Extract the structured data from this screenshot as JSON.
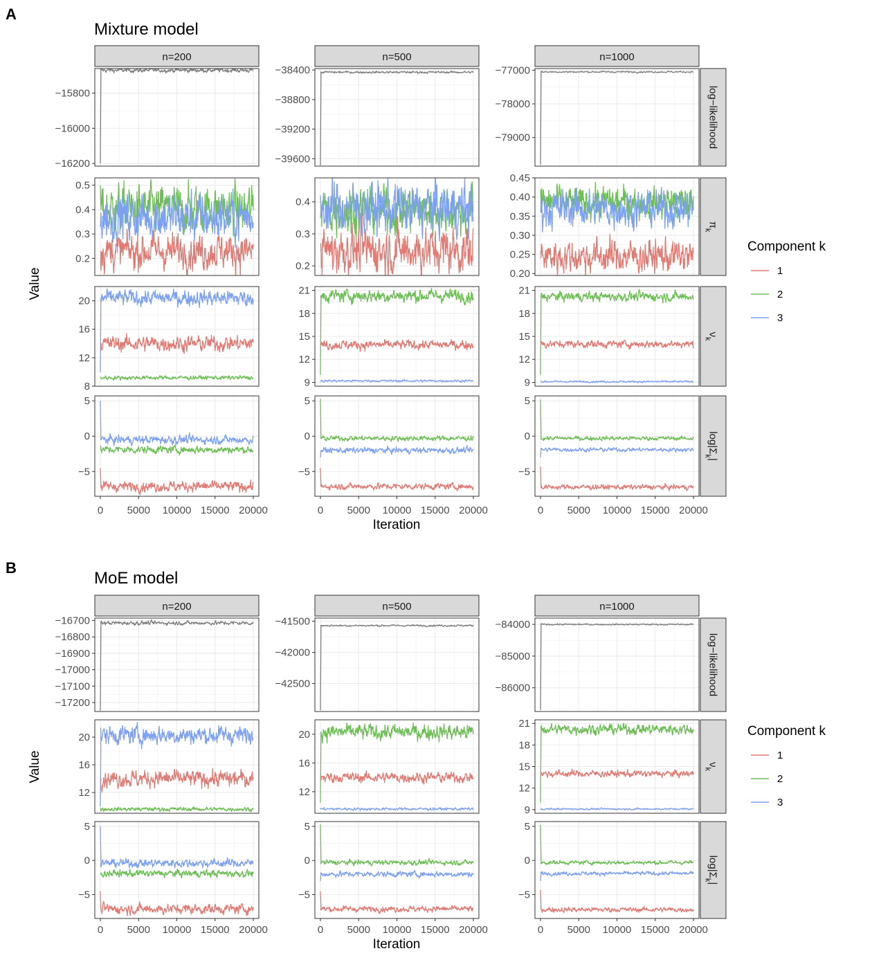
{
  "colors": {
    "1": "#E07A72",
    "2": "#6DBE55",
    "3": "#7CA0F2",
    "ll": "#7F7F7F"
  },
  "legend": {
    "title": "Component k",
    "entries": [
      "1",
      "2",
      "3"
    ]
  },
  "chart_data": [
    {
      "panel_label": "A",
      "title": "Mixture model",
      "type": "line",
      "xlabel": "Iteration",
      "ylabel": "Value",
      "xlim": [
        0,
        20000
      ],
      "xticks": [
        "0",
        "5000",
        "10000",
        "15000",
        "20000"
      ],
      "columns": [
        "n=200",
        "n=500",
        "n=1000"
      ],
      "rows": [
        {
          "key": "loglik",
          "strip": "log−likelihood",
          "cells": [
            {
              "ylim": [
                -16215,
                -15660
              ],
              "ticks": [
                -16200,
                -16000,
                -15800
              ],
              "tick_labels": [
                "−16200",
                "−16000",
                "−15800"
              ],
              "series": [
                {
                  "k": "ll",
                  "start": -16200,
                  "level": -15670,
                  "noise": 5
                }
              ]
            },
            {
              "ylim": [
                -39700,
                -38380
              ],
              "ticks": [
                -39600,
                -39200,
                -38800,
                -38400
              ],
              "tick_labels": [
                "−39600",
                "−39200",
                "−38800",
                "−38400"
              ],
              "series": [
                {
                  "k": "ll",
                  "start": -39690,
                  "level": -38430,
                  "noise": 6
                }
              ]
            },
            {
              "ylim": [
                -79850,
                -76950
              ],
              "ticks": [
                -79000,
                -78000,
                -77000
              ],
              "tick_labels": [
                "−79000",
                "−78000",
                "−77000"
              ],
              "series": [
                {
                  "k": "ll",
                  "start": -79800,
                  "level": -77050,
                  "noise": 10
                }
              ]
            }
          ]
        },
        {
          "key": "pi",
          "strip": "π_k",
          "cells": [
            {
              "ylim": [
                0.13,
                0.53
              ],
              "ticks": [
                0.2,
                0.3,
                0.4,
                0.5
              ],
              "tick_labels": [
                "0.2",
                "0.3",
                "0.4",
                "0.5"
              ],
              "series": [
                {
                  "k": "2",
                  "start": 0.5,
                  "level": 0.4,
                  "noise": 0.04
                },
                {
                  "k": "3",
                  "start": 0.33,
                  "level": 0.37,
                  "noise": 0.042
                },
                {
                  "k": "1",
                  "start": 0.23,
                  "level": 0.23,
                  "noise": 0.03
                }
              ]
            },
            {
              "ylim": [
                0.17,
                0.475
              ],
              "ticks": [
                0.2,
                0.3,
                0.4
              ],
              "tick_labels": [
                "0.2",
                "0.3",
                "0.4"
              ],
              "series": [
                {
                  "k": "2",
                  "start": 0.35,
                  "level": 0.375,
                  "noise": 0.03
                },
                {
                  "k": "3",
                  "start": 0.42,
                  "level": 0.38,
                  "noise": 0.035
                },
                {
                  "k": "1",
                  "start": 0.25,
                  "level": 0.25,
                  "noise": 0.03
                }
              ]
            },
            {
              "ylim": [
                0.195,
                0.45
              ],
              "ticks": [
                0.2,
                0.25,
                0.3,
                0.35,
                0.4,
                0.45
              ],
              "tick_labels": [
                "0.20",
                "0.25",
                "0.30",
                "0.35",
                "0.40",
                "0.45"
              ],
              "series": [
                {
                  "k": "2",
                  "start": 0.42,
                  "level": 0.385,
                  "noise": 0.018
                },
                {
                  "k": "3",
                  "start": 0.36,
                  "level": 0.37,
                  "noise": 0.02
                },
                {
                  "k": "1",
                  "start": 0.24,
                  "level": 0.245,
                  "noise": 0.018
                }
              ]
            }
          ]
        },
        {
          "key": "nu",
          "strip": "ν_k",
          "cells": [
            {
              "ylim": [
                8,
                22
              ],
              "ticks": [
                8,
                12,
                16,
                20
              ],
              "tick_labels": [
                "8",
                "12",
                "16",
                "20"
              ],
              "series": [
                {
                  "k": "3",
                  "start": 10,
                  "level": 20.4,
                  "noise": 0.45
                },
                {
                  "k": "1",
                  "start": 14,
                  "level": 14.0,
                  "noise": 0.45
                },
                {
                  "k": "2",
                  "start": 9.3,
                  "level": 9.2,
                  "noise": 0.12
                }
              ]
            },
            {
              "ylim": [
                8.5,
                21.5
              ],
              "ticks": [
                9,
                12,
                15,
                18,
                21
              ],
              "tick_labels": [
                "9",
                "12",
                "15",
                "18",
                "21"
              ],
              "series": [
                {
                  "k": "2",
                  "start": 10,
                  "level": 20.3,
                  "noise": 0.35
                },
                {
                  "k": "1",
                  "start": 14,
                  "level": 13.9,
                  "noise": 0.25
                },
                {
                  "k": "3",
                  "start": 9.2,
                  "level": 9.2,
                  "noise": 0.06
                }
              ]
            },
            {
              "ylim": [
                8.5,
                21.5
              ],
              "ticks": [
                9,
                12,
                15,
                18,
                21
              ],
              "tick_labels": [
                "9",
                "12",
                "15",
                "18",
                "21"
              ],
              "series": [
                {
                  "k": "2",
                  "start": 10,
                  "level": 20.2,
                  "noise": 0.25
                },
                {
                  "k": "1",
                  "start": 14,
                  "level": 14.0,
                  "noise": 0.2
                },
                {
                  "k": "3",
                  "start": 9.1,
                  "level": 9.1,
                  "noise": 0.05
                }
              ]
            }
          ]
        },
        {
          "key": "logsig",
          "strip": "log|Σ_k|",
          "cells": [
            {
              "ylim": [
                -8.5,
                5.7
              ],
              "ticks": [
                -5,
                0,
                5
              ],
              "tick_labels": [
                "−5",
                "0",
                "5"
              ],
              "series": [
                {
                  "k": "3",
                  "start": 5,
                  "level": -0.5,
                  "noise": 0.25
                },
                {
                  "k": "2",
                  "start": -1.8,
                  "level": -1.9,
                  "noise": 0.22
                },
                {
                  "k": "1",
                  "start": -4.5,
                  "level": -7.1,
                  "noise": 0.3
                }
              ]
            },
            {
              "ylim": [
                -8.5,
                5.7
              ],
              "ticks": [
                -5,
                0,
                5
              ],
              "tick_labels": [
                "−5",
                "0",
                "5"
              ],
              "series": [
                {
                  "k": "2",
                  "start": 5.3,
                  "level": -0.3,
                  "noise": 0.15
                },
                {
                  "k": "3",
                  "start": -3,
                  "level": -2.0,
                  "noise": 0.17
                },
                {
                  "k": "1",
                  "start": -4.5,
                  "level": -7.1,
                  "noise": 0.18
                }
              ]
            },
            {
              "ylim": [
                -8.5,
                5.7
              ],
              "ticks": [
                -5,
                0,
                5
              ],
              "tick_labels": [
                "−5",
                "0",
                "5"
              ],
              "series": [
                {
                  "k": "2",
                  "start": 5.2,
                  "level": -0.3,
                  "noise": 0.12
                },
                {
                  "k": "3",
                  "start": -3,
                  "level": -1.9,
                  "noise": 0.12
                },
                {
                  "k": "1",
                  "start": -4.3,
                  "level": -7.2,
                  "noise": 0.15
                }
              ]
            }
          ]
        }
      ]
    },
    {
      "panel_label": "B",
      "title": "MoE model",
      "type": "line",
      "xlabel": "Iteration",
      "ylabel": "Value",
      "xlim": [
        0,
        20000
      ],
      "xticks": [
        "0",
        "5000",
        "10000",
        "15000",
        "20000"
      ],
      "columns": [
        "n=200",
        "n=500",
        "n=1000"
      ],
      "rows": [
        {
          "key": "loglik",
          "strip": "log−likelihood",
          "cells": [
            {
              "ylim": [
                -17255,
                -16685
              ],
              "ticks": [
                -17200,
                -17100,
                -17000,
                -16900,
                -16800,
                -16700
              ],
              "tick_labels": [
                "−17200",
                "−17100",
                "−17000",
                "−16900",
                "−16800",
                "−16700"
              ],
              "series": [
                {
                  "k": "ll",
                  "start": -17250,
                  "level": -16715,
                  "noise": 5
                }
              ]
            },
            {
              "ylim": [
                -42950,
                -41450
              ],
              "ticks": [
                -42500,
                -42000,
                -41500
              ],
              "tick_labels": [
                "−42500",
                "−42000",
                "−41500"
              ],
              "series": [
                {
                  "k": "ll",
                  "start": -42930,
                  "level": -41570,
                  "noise": 6
                }
              ]
            },
            {
              "ylim": [
                -86750,
                -83800
              ],
              "ticks": [
                -86000,
                -85000,
                -84000
              ],
              "tick_labels": [
                "−86000",
                "−85000",
                "−84000"
              ],
              "series": [
                {
                  "k": "ll",
                  "start": -86700,
                  "level": -84000,
                  "noise": 10
                }
              ]
            }
          ]
        },
        {
          "key": "nu",
          "strip": "ν_k",
          "cells": [
            {
              "ylim": [
                9,
                22.5
              ],
              "ticks": [
                12,
                16,
                20
              ],
              "tick_labels": [
                "12",
                "16",
                "20"
              ],
              "series": [
                {
                  "k": "3",
                  "start": 10,
                  "level": 20.3,
                  "noise": 0.55
                },
                {
                  "k": "1",
                  "start": 14,
                  "level": 14.0,
                  "noise": 0.5
                },
                {
                  "k": "2",
                  "start": 9.8,
                  "level": 9.6,
                  "noise": 0.12
                }
              ]
            },
            {
              "ylim": [
                9,
                22
              ],
              "ticks": [
                12,
                16,
                20
              ],
              "tick_labels": [
                "12",
                "16",
                "20"
              ],
              "series": [
                {
                  "k": "2",
                  "start": 10.5,
                  "level": 20.3,
                  "noise": 0.45
                },
                {
                  "k": "1",
                  "start": 14,
                  "level": 14.0,
                  "noise": 0.3
                },
                {
                  "k": "3",
                  "start": 9.6,
                  "level": 9.6,
                  "noise": 0.08
                }
              ]
            },
            {
              "ylim": [
                8.5,
                21.5
              ],
              "ticks": [
                9,
                12,
                15,
                18,
                21
              ],
              "tick_labels": [
                "9",
                "12",
                "15",
                "18",
                "21"
              ],
              "series": [
                {
                  "k": "2",
                  "start": 10,
                  "level": 20.2,
                  "noise": 0.3
                },
                {
                  "k": "1",
                  "start": 14,
                  "level": 14.0,
                  "noise": 0.2
                },
                {
                  "k": "3",
                  "start": 9.1,
                  "level": 9.1,
                  "noise": 0.05
                }
              ]
            }
          ]
        },
        {
          "key": "logsig",
          "strip": "log|Σ_k|",
          "cells": [
            {
              "ylim": [
                -8.5,
                5.7
              ],
              "ticks": [
                -5,
                0,
                5
              ],
              "tick_labels": [
                "−5",
                "0",
                "5"
              ],
              "series": [
                {
                  "k": "3",
                  "start": 5,
                  "level": -0.4,
                  "noise": 0.25
                },
                {
                  "k": "2",
                  "start": -1.8,
                  "level": -1.9,
                  "noise": 0.22
                },
                {
                  "k": "1",
                  "start": -4.5,
                  "level": -7.1,
                  "noise": 0.3
                }
              ]
            },
            {
              "ylim": [
                -8.5,
                5.7
              ],
              "ticks": [
                -5,
                0,
                5
              ],
              "tick_labels": [
                "−5",
                "0",
                "5"
              ],
              "series": [
                {
                  "k": "2",
                  "start": 5.3,
                  "level": -0.3,
                  "noise": 0.15
                },
                {
                  "k": "3",
                  "start": -3,
                  "level": -2.0,
                  "noise": 0.17
                },
                {
                  "k": "1",
                  "start": -4.5,
                  "level": -7.1,
                  "noise": 0.18
                }
              ]
            },
            {
              "ylim": [
                -8.5,
                5.7
              ],
              "ticks": [
                -5,
                0,
                5
              ],
              "tick_labels": [
                "−5",
                "0",
                "5"
              ],
              "series": [
                {
                  "k": "2",
                  "start": 5.2,
                  "level": -0.3,
                  "noise": 0.12
                },
                {
                  "k": "3",
                  "start": -3,
                  "level": -1.9,
                  "noise": 0.12
                },
                {
                  "k": "1",
                  "start": -4.3,
                  "level": -7.2,
                  "noise": 0.15
                }
              ]
            }
          ]
        }
      ]
    }
  ]
}
